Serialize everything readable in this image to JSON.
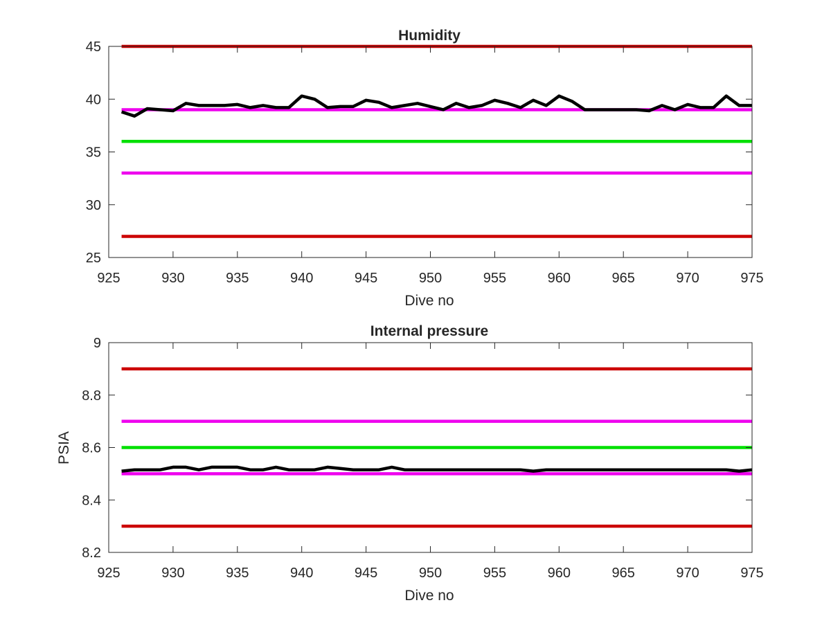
{
  "chart_data": [
    {
      "type": "line",
      "title": "Humidity",
      "xlabel": "Dive no",
      "ylabel": "",
      "xlim": [
        925,
        975
      ],
      "ylim": [
        25,
        45
      ],
      "xticks": [
        "925",
        "930",
        "935",
        "940",
        "945",
        "950",
        "955",
        "960",
        "965",
        "970",
        "975"
      ],
      "yticks": [
        "25",
        "30",
        "35",
        "40",
        "45"
      ],
      "grid": false,
      "legend": "none",
      "reference_lines": [
        {
          "y": 45,
          "color": "#cc0000"
        },
        {
          "y": 39,
          "color": "#ee00ee"
        },
        {
          "y": 36,
          "color": "#00e000"
        },
        {
          "y": 33,
          "color": "#ee00ee"
        },
        {
          "y": 27,
          "color": "#cc0000"
        }
      ],
      "series": [
        {
          "color": "#000000",
          "x": [
            926,
            927,
            928,
            929,
            930,
            931,
            932,
            933,
            934,
            935,
            936,
            937,
            938,
            939,
            940,
            941,
            942,
            943,
            944,
            945,
            946,
            947,
            948,
            949,
            950,
            951,
            952,
            953,
            954,
            955,
            956,
            957,
            958,
            959,
            960,
            961,
            962,
            963,
            964,
            965,
            966,
            967,
            968,
            969,
            970,
            971,
            972,
            973,
            974,
            975
          ],
          "values": [
            38.8,
            38.4,
            39.1,
            39.0,
            38.9,
            39.6,
            39.4,
            39.4,
            39.4,
            39.5,
            39.2,
            39.4,
            39.2,
            39.2,
            40.3,
            40.0,
            39.2,
            39.3,
            39.3,
            39.9,
            39.7,
            39.2,
            39.4,
            39.6,
            39.3,
            39.0,
            39.6,
            39.2,
            39.4,
            39.9,
            39.6,
            39.2,
            39.9,
            39.4,
            40.3,
            39.8,
            39.0,
            39.0,
            39.0,
            39.0,
            39.0,
            38.9,
            39.4,
            39.0,
            39.5,
            39.2,
            39.2,
            40.3,
            39.4,
            39.4
          ]
        }
      ]
    },
    {
      "type": "line",
      "title": "Internal pressure",
      "xlabel": "Dive no",
      "ylabel": "PSIA",
      "xlim": [
        925,
        975
      ],
      "ylim": [
        8.2,
        9
      ],
      "xticks": [
        "925",
        "930",
        "935",
        "940",
        "945",
        "950",
        "955",
        "960",
        "965",
        "970",
        "975"
      ],
      "yticks": [
        "8.2",
        "8.4",
        "8.6",
        "8.8",
        "9"
      ],
      "grid": false,
      "legend": "none",
      "reference_lines": [
        {
          "y": 8.9,
          "color": "#cc0000"
        },
        {
          "y": 8.7,
          "color": "#ee00ee"
        },
        {
          "y": 8.6,
          "color": "#00e000"
        },
        {
          "y": 8.5,
          "color": "#ee00ee"
        },
        {
          "y": 8.3,
          "color": "#cc0000"
        }
      ],
      "series": [
        {
          "color": "#000000",
          "x": [
            926,
            927,
            928,
            929,
            930,
            931,
            932,
            933,
            934,
            935,
            936,
            937,
            938,
            939,
            940,
            941,
            942,
            943,
            944,
            945,
            946,
            947,
            948,
            949,
            950,
            951,
            952,
            953,
            954,
            955,
            956,
            957,
            958,
            959,
            960,
            961,
            962,
            963,
            964,
            965,
            966,
            967,
            968,
            969,
            970,
            971,
            972,
            973,
            974,
            975
          ],
          "values": [
            8.51,
            8.515,
            8.515,
            8.515,
            8.525,
            8.525,
            8.515,
            8.525,
            8.525,
            8.525,
            8.515,
            8.515,
            8.525,
            8.515,
            8.515,
            8.515,
            8.525,
            8.52,
            8.515,
            8.515,
            8.515,
            8.525,
            8.515,
            8.515,
            8.515,
            8.515,
            8.515,
            8.515,
            8.515,
            8.515,
            8.515,
            8.515,
            8.51,
            8.515,
            8.515,
            8.515,
            8.515,
            8.515,
            8.515,
            8.515,
            8.515,
            8.515,
            8.515,
            8.515,
            8.515,
            8.515,
            8.515,
            8.515,
            8.51,
            8.515
          ]
        }
      ]
    }
  ]
}
